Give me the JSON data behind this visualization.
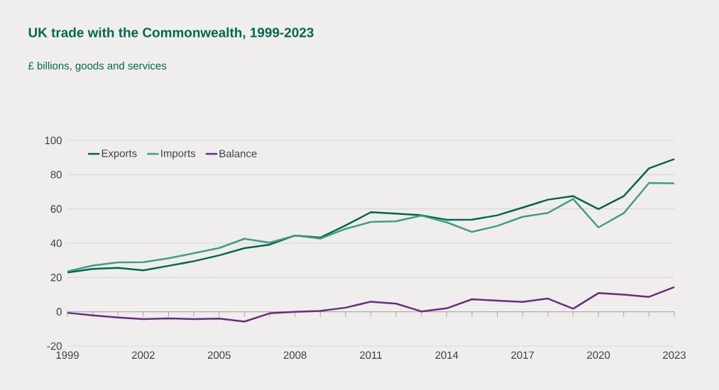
{
  "chart_data": {
    "type": "line",
    "title": "UK trade with the Commonwealth, 1999-2023",
    "subtitle": "£ billions, goods and services",
    "x": [
      1999,
      2000,
      2001,
      2002,
      2003,
      2004,
      2005,
      2006,
      2007,
      2008,
      2009,
      2010,
      2011,
      2012,
      2013,
      2014,
      2015,
      2016,
      2017,
      2018,
      2019,
      2020,
      2021,
      2022,
      2023
    ],
    "series": [
      {
        "name": "Exports",
        "color": "#00664f",
        "values": [
          22.9,
          25.0,
          25.6,
          24.2,
          26.8,
          29.5,
          32.9,
          37.1,
          39.2,
          44.5,
          43.3,
          50.4,
          58.1,
          57.3,
          56.3,
          53.7,
          53.8,
          56.3,
          60.8,
          65.4,
          67.5,
          59.9,
          67.5,
          83.7,
          89.1
        ]
      },
      {
        "name": "Imports",
        "color": "#3f9c86",
        "values": [
          23.6,
          27.0,
          28.8,
          28.9,
          31.2,
          34.2,
          37.2,
          42.6,
          40.3,
          44.5,
          42.7,
          48.4,
          52.4,
          52.8,
          56.1,
          52.2,
          46.6,
          50.1,
          55.4,
          57.7,
          65.8,
          49.2,
          57.5,
          75.2,
          75.0
        ]
      },
      {
        "name": "Balance",
        "color": "#6a2c82",
        "values": [
          -0.6,
          -2.1,
          -3.3,
          -4.3,
          -3.9,
          -4.3,
          -4.0,
          -5.7,
          -0.9,
          0.0,
          0.5,
          2.4,
          5.9,
          4.7,
          0.2,
          2.0,
          7.3,
          6.5,
          5.8,
          7.7,
          1.8,
          10.9,
          10.0,
          8.7,
          14.4
        ]
      }
    ],
    "xlim": [
      1999,
      2023
    ],
    "xticks": [
      1999,
      2002,
      2005,
      2008,
      2011,
      2014,
      2017,
      2020,
      2023
    ],
    "ylim": [
      -20,
      100
    ],
    "yticks": [
      -20,
      0,
      20,
      40,
      60,
      80,
      100
    ],
    "grid": "y",
    "legend": "top left",
    "marker": "none",
    "line_style": "solid"
  }
}
